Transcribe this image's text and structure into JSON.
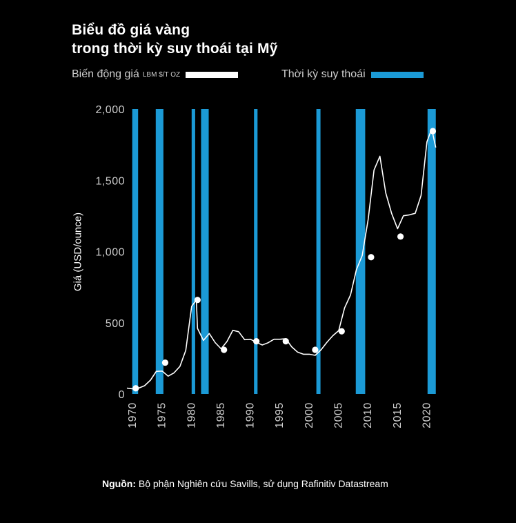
{
  "title_line1": "Biểu đồ giá vàng",
  "title_line2": "trong thời kỳ suy thoái tại Mỹ",
  "legend": {
    "price_label": "Biến động giá",
    "price_unit": "LBM $/T OZ",
    "recession_label": "Thời kỳ suy thoái"
  },
  "source_label": "Nguồn:",
  "source_text": "Bộ phận Nghiên cứu Savills, sử dụng Rafinitiv Datastream",
  "colors": {
    "background": "#000000",
    "line": "#ffffff",
    "recession": "#1b9ad6",
    "axis_text": "#cfcfcf"
  },
  "chart_data": {
    "type": "line",
    "ylabel": "Giá (USD/ounce)",
    "xlabel": "",
    "ylim": [
      0,
      2000
    ],
    "xlim": [
      1969,
      2022
    ],
    "y_ticks": [
      {
        "value": 0,
        "label": "0"
      },
      {
        "value": 500,
        "label": "500"
      },
      {
        "value": 1000,
        "label": "1,000"
      },
      {
        "value": 1500,
        "label": "1,500"
      },
      {
        "value": 2000,
        "label": "2,000"
      }
    ],
    "x_ticks": [
      1970,
      1975,
      1980,
      1985,
      1990,
      1995,
      2000,
      2005,
      2010,
      2015,
      2020
    ],
    "recessions": [
      [
        1969.9,
        1970.9
      ],
      [
        1973.9,
        1975.2
      ],
      [
        1980.0,
        1980.6
      ],
      [
        1981.6,
        1982.9
      ],
      [
        1990.6,
        1991.2
      ],
      [
        2001.2,
        2001.9
      ],
      [
        2007.9,
        2009.5
      ],
      [
        2020.1,
        2021.5
      ]
    ],
    "series": [
      {
        "values": [
          {
            "x": 1969,
            "y": 41
          },
          {
            "x": 1970,
            "y": 36
          },
          {
            "x": 1971,
            "y": 41
          },
          {
            "x": 1972,
            "y": 58
          },
          {
            "x": 1973,
            "y": 97
          },
          {
            "x": 1974,
            "y": 159
          },
          {
            "x": 1975,
            "y": 161
          },
          {
            "x": 1976,
            "y": 125
          },
          {
            "x": 1977,
            "y": 148
          },
          {
            "x": 1978,
            "y": 193
          },
          {
            "x": 1979,
            "y": 306
          },
          {
            "x": 1980,
            "y": 615
          },
          {
            "x": 1980.8,
            "y": 660
          },
          {
            "x": 1981,
            "y": 460
          },
          {
            "x": 1982,
            "y": 376
          },
          {
            "x": 1983,
            "y": 424
          },
          {
            "x": 1984,
            "y": 361
          },
          {
            "x": 1985,
            "y": 317
          },
          {
            "x": 1986,
            "y": 368
          },
          {
            "x": 1987,
            "y": 447
          },
          {
            "x": 1988,
            "y": 437
          },
          {
            "x": 1989,
            "y": 381
          },
          {
            "x": 1990,
            "y": 384
          },
          {
            "x": 1991,
            "y": 362
          },
          {
            "x": 1992,
            "y": 344
          },
          {
            "x": 1993,
            "y": 360
          },
          {
            "x": 1994,
            "y": 384
          },
          {
            "x": 1995,
            "y": 384
          },
          {
            "x": 1996,
            "y": 388
          },
          {
            "x": 1997,
            "y": 331
          },
          {
            "x": 1998,
            "y": 294
          },
          {
            "x": 1999,
            "y": 279
          },
          {
            "x": 2000,
            "y": 279
          },
          {
            "x": 2001,
            "y": 271
          },
          {
            "x": 2002,
            "y": 310
          },
          {
            "x": 2003,
            "y": 363
          },
          {
            "x": 2004,
            "y": 409
          },
          {
            "x": 2005,
            "y": 445
          },
          {
            "x": 2006,
            "y": 604
          },
          {
            "x": 2007,
            "y": 695
          },
          {
            "x": 2008,
            "y": 872
          },
          {
            "x": 2009,
            "y": 972
          },
          {
            "x": 2010,
            "y": 1225
          },
          {
            "x": 2011,
            "y": 1572
          },
          {
            "x": 2012,
            "y": 1669
          },
          {
            "x": 2013,
            "y": 1411
          },
          {
            "x": 2014,
            "y": 1266
          },
          {
            "x": 2015,
            "y": 1160
          },
          {
            "x": 2016,
            "y": 1251
          },
          {
            "x": 2017,
            "y": 1257
          },
          {
            "x": 2018,
            "y": 1268
          },
          {
            "x": 2019,
            "y": 1393
          },
          {
            "x": 2020,
            "y": 1770
          },
          {
            "x": 2020.8,
            "y": 1860
          },
          {
            "x": 2021.5,
            "y": 1730
          }
        ]
      }
    ],
    "markers": [
      {
        "x": 1970.5,
        "y": 40
      },
      {
        "x": 1975.5,
        "y": 220
      },
      {
        "x": 1981.0,
        "y": 660
      },
      {
        "x": 1985.5,
        "y": 310
      },
      {
        "x": 1991.0,
        "y": 370
      },
      {
        "x": 1996.0,
        "y": 370
      },
      {
        "x": 2001.0,
        "y": 310
      },
      {
        "x": 2005.5,
        "y": 440
      },
      {
        "x": 2010.5,
        "y": 960
      },
      {
        "x": 2015.5,
        "y": 1105
      },
      {
        "x": 2021.0,
        "y": 1845
      }
    ]
  }
}
